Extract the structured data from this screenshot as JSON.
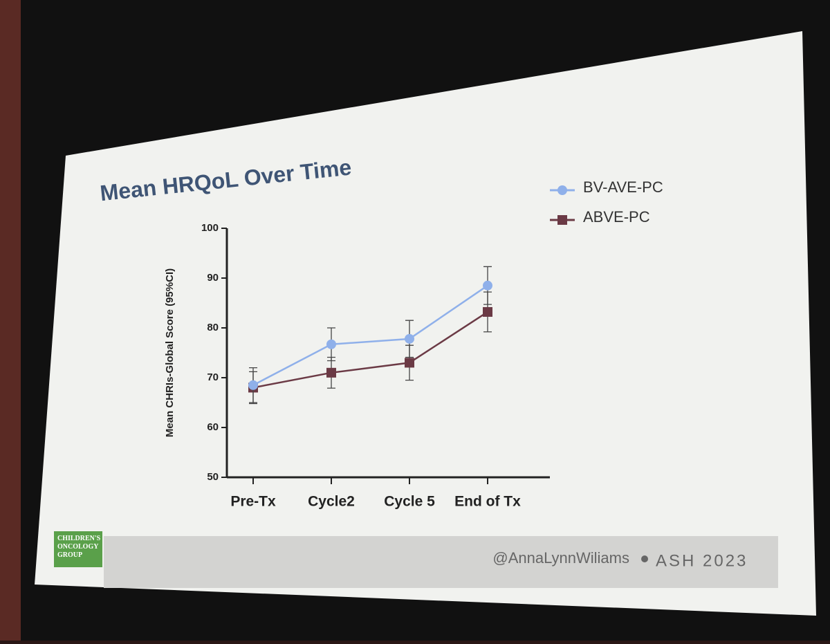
{
  "chart_data": {
    "type": "line",
    "title": "Mean HRQoL Over Time",
    "y_label": "Mean CHRIs-Global Score (95%CI)",
    "categories": [
      "Pre-Tx",
      "Cycle2",
      "Cycle 5",
      "End of Tx"
    ],
    "series": [
      {
        "name": "BV-AVE-PC",
        "color": "#8fb0ea",
        "marker": "circle",
        "values": [
          68.5,
          76.7,
          77.8,
          88.5
        ],
        "errors": [
          3.5,
          3.3,
          3.7,
          3.8
        ]
      },
      {
        "name": "ABVE-PC",
        "color": "#6b3a45",
        "marker": "square",
        "values": [
          68,
          71,
          73,
          83.2
        ],
        "errors": [
          3.2,
          3.1,
          3.5,
          4
        ]
      }
    ],
    "ylim": [
      50,
      100
    ],
    "yticks": [
      50,
      60,
      70,
      80,
      90,
      100
    ],
    "legend": "top-right"
  },
  "footer": {
    "logo": "CHILDREN'S ONCOLOGY GROUP",
    "handle": "@AnnaLynnWiliams",
    "event": "ASH 2023"
  }
}
